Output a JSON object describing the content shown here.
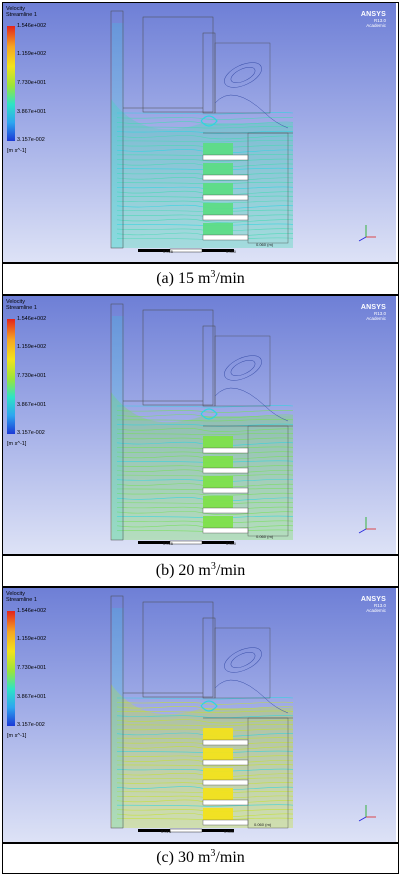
{
  "panels": [
    {
      "id": "a",
      "legend": {
        "title_line1": "Velocity",
        "title_line2": "Streamline 1",
        "ticks": [
          "1.546e+002",
          "1.159e+002",
          "7.730e+001",
          "3.867e+001",
          "3.157e-002"
        ],
        "unit": "[m s^-1]"
      },
      "brand": {
        "logo": "ANSYS",
        "version": "R13.0",
        "edition": "Academic"
      },
      "scale": {
        "left_label": "0.000",
        "mid_label": "0.015",
        "right_label": "0.040",
        "far_label": "0.060 (m)"
      },
      "caption": {
        "prefix": "(a)  15  m",
        "sup": "3",
        "suffix": "/min"
      },
      "flow_level": 0.15
    },
    {
      "id": "b",
      "legend": {
        "title_line1": "Velocity",
        "title_line2": "Streamline 1",
        "ticks": [
          "1.546e+002",
          "1.159e+002",
          "7.730e+001",
          "3.867e+001",
          "3.157e-002"
        ],
        "unit": "[m s^-1]"
      },
      "brand": {
        "logo": "ANSYS",
        "version": "R13.0",
        "edition": "Academic"
      },
      "scale": {
        "left_label": "0.000",
        "mid_label": "0.015",
        "right_label": "0.040",
        "far_label": "0.060 (m)"
      },
      "caption": {
        "prefix": "(b)  20  m",
        "sup": "3",
        "suffix": "/min"
      },
      "flow_level": 0.45
    },
    {
      "id": "c",
      "legend": {
        "title_line1": "Velocity",
        "title_line2": "Streamline 1",
        "ticks": [
          "1.546e+002",
          "1.159e+002",
          "7.730e+001",
          "3.867e+001",
          "3.157e-002"
        ],
        "unit": "[m s^-1]"
      },
      "brand": {
        "logo": "ANSYS",
        "version": "R13.0",
        "edition": "Academic"
      },
      "scale": {
        "left_label": "0.000",
        "mid_label": "0.015",
        "right_label": "0.040",
        "far_label": "0.060 (m)"
      },
      "caption": {
        "prefix": "(c)  30  m",
        "sup": "3",
        "suffix": "/min"
      },
      "flow_level": 0.8
    }
  ],
  "colors": {
    "low": "#2cd6e0",
    "mid": "#7ee04a",
    "high": "#f2e21c",
    "outline": "#4b4b4b"
  }
}
